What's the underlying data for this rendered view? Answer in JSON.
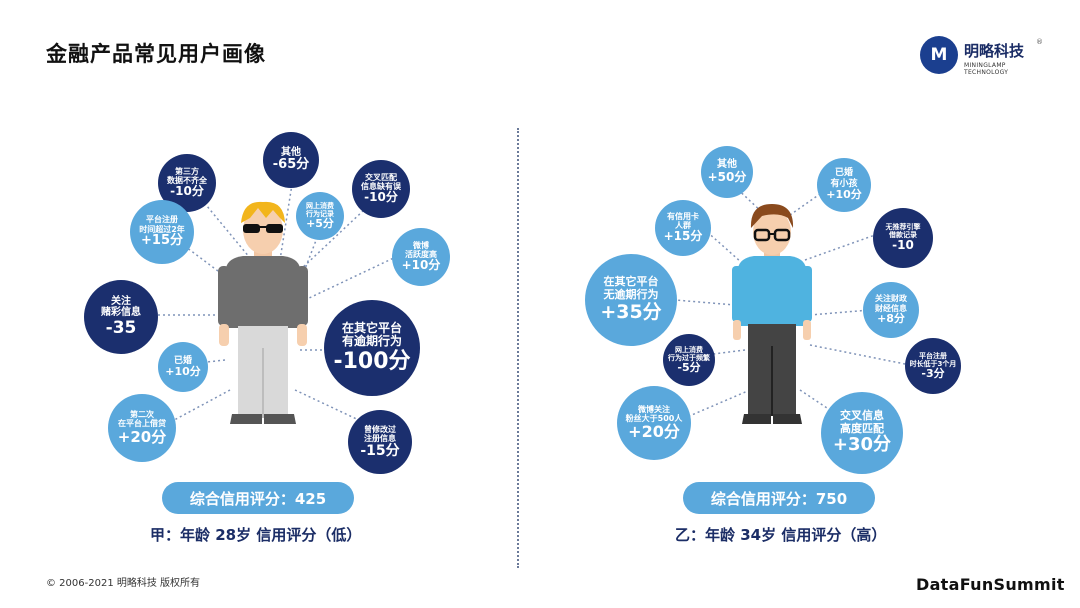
{
  "slide": {
    "title": "金融产品常见用户画像",
    "logo": {
      "mark": "M",
      "name": "明略科技",
      "reg": "®",
      "en": "MININGLAMP TECHNOLOGY"
    },
    "footer_left": "© 2006-2021 明略科技 版权所有",
    "footer_right": "DataFunSummit"
  },
  "personas": [
    {
      "score_label": "综合信用评分：425",
      "summary": "甲：年龄 28岁 信用评分（低）",
      "bubbles": [
        {
          "label": "第三方\n数据不齐全",
          "value": "-10分"
        },
        {
          "label": "其他",
          "value": "-65分"
        },
        {
          "label": "交叉匹配\n信息缺有误",
          "value": "-10分"
        },
        {
          "label": "网上消费\n行为记录",
          "value": "+5分"
        },
        {
          "label": "平台注册\n时间超过2年",
          "value": "+15分"
        },
        {
          "label": "微博\n活跃度高",
          "value": "+10分"
        },
        {
          "label": "关注\n赌彩信息",
          "value": "-35"
        },
        {
          "label": "在其它平台\n有逾期行为",
          "value": "-100分"
        },
        {
          "label": "已婚",
          "value": "+10分"
        },
        {
          "label": "第二次\n在平台上借贷",
          "value": "+20分"
        },
        {
          "label": "曾修改过\n注册信息",
          "value": "-15分"
        }
      ]
    },
    {
      "score_label": "综合信用评分：750",
      "summary": "乙：年龄 34岁 信用评分（高）",
      "bubbles": [
        {
          "label": "其他",
          "value": "+50分"
        },
        {
          "label": "已婚\n有小孩",
          "value": "+10分"
        },
        {
          "label": "有信用卡\n人群",
          "value": "+15分"
        },
        {
          "label": "无推荐引擎\n借款记录",
          "value": "-10"
        },
        {
          "label": "在其它平台\n无逾期行为",
          "value": "+35分"
        },
        {
          "label": "关注财政\n财经信息",
          "value": "+8分"
        },
        {
          "label": "网上消费\n行为过于频繁",
          "value": "-5分"
        },
        {
          "label": "平台注册\n时长低于3个月",
          "value": "-3分"
        },
        {
          "label": "微博关注\n粉丝大于500人",
          "value": "+20分"
        },
        {
          "label": "交叉信息\n高度匹配",
          "value": "+30分"
        }
      ]
    }
  ],
  "colors": {
    "dark": "#1b2f6e",
    "light": "#5aa8dc",
    "hair_a": "#f2b51c",
    "hair_b": "#8a4a1d"
  }
}
